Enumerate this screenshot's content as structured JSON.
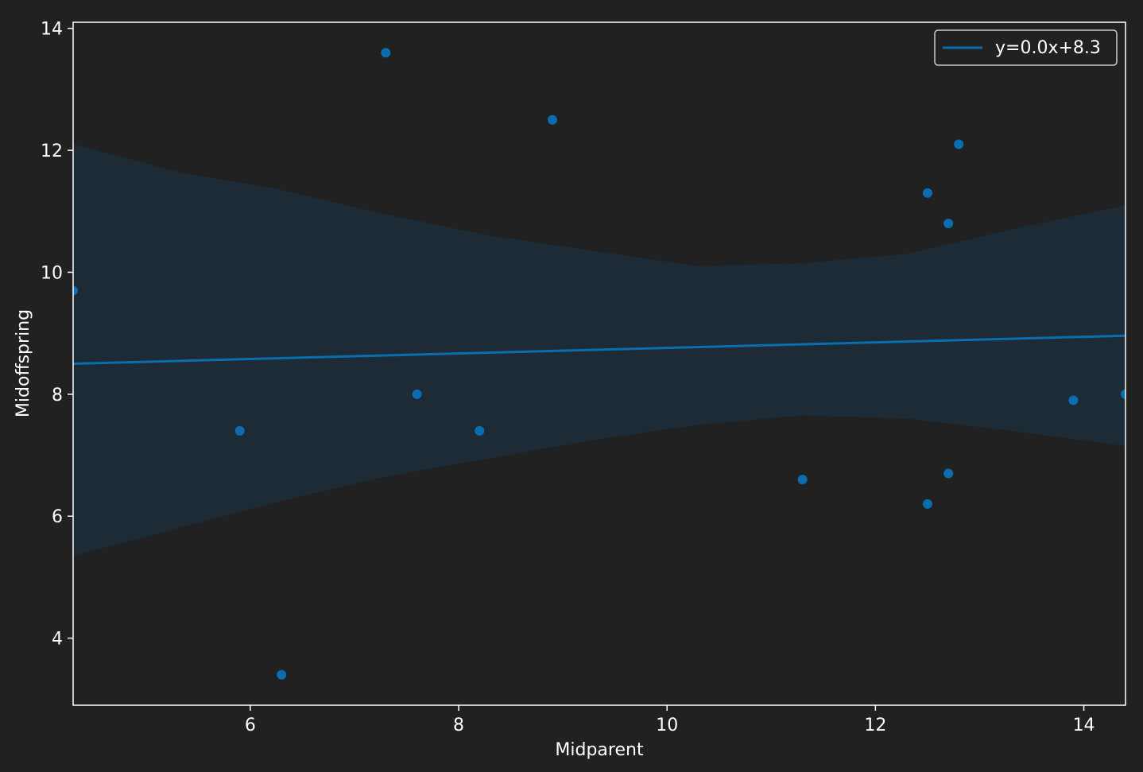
{
  "chart_data": {
    "type": "scatter",
    "title": "",
    "xlabel": "Midparent",
    "ylabel": "Midoffspring",
    "xlim": [
      4.3,
      14.4
    ],
    "ylim": [
      2.9,
      14.1
    ],
    "x_ticks": [
      6,
      8,
      10,
      12,
      14
    ],
    "y_ticks": [
      4,
      6,
      8,
      10,
      12,
      14
    ],
    "grid": false,
    "legend_position": "top-right",
    "colors": {
      "background": "#212121",
      "axes": "#ffffff",
      "text": "#ffffff",
      "points": "#0a6db0",
      "line": "#0a6db0",
      "band": "#1c2b35"
    },
    "series": [
      {
        "type": "scatter",
        "x": [
          4.3,
          5.9,
          6.3,
          7.3,
          7.6,
          8.2,
          8.9,
          11.3,
          12.5,
          12.5,
          12.7,
          12.7,
          12.8,
          13.9,
          14.4
        ],
        "y": [
          9.7,
          7.4,
          3.4,
          13.6,
          8.0,
          7.4,
          12.5,
          6.6,
          11.3,
          6.2,
          10.8,
          6.7,
          12.1,
          7.9,
          8.0
        ]
      },
      {
        "type": "line",
        "name": "y=0.0x+8.3",
        "x": [
          4.3,
          14.4
        ],
        "y": [
          8.5,
          8.96
        ]
      }
    ],
    "confidence_band": {
      "x": [
        4.3,
        5.3,
        6.3,
        7.3,
        8.3,
        9.3,
        10.3,
        11.3,
        12.3,
        13.3,
        14.4
      ],
      "upper": [
        12.1,
        11.65,
        11.35,
        10.95,
        10.6,
        10.35,
        10.1,
        10.15,
        10.3,
        10.7,
        11.1
      ],
      "lower": [
        5.35,
        5.8,
        6.25,
        6.65,
        6.95,
        7.25,
        7.5,
        7.65,
        7.6,
        7.4,
        7.15
      ]
    }
  }
}
